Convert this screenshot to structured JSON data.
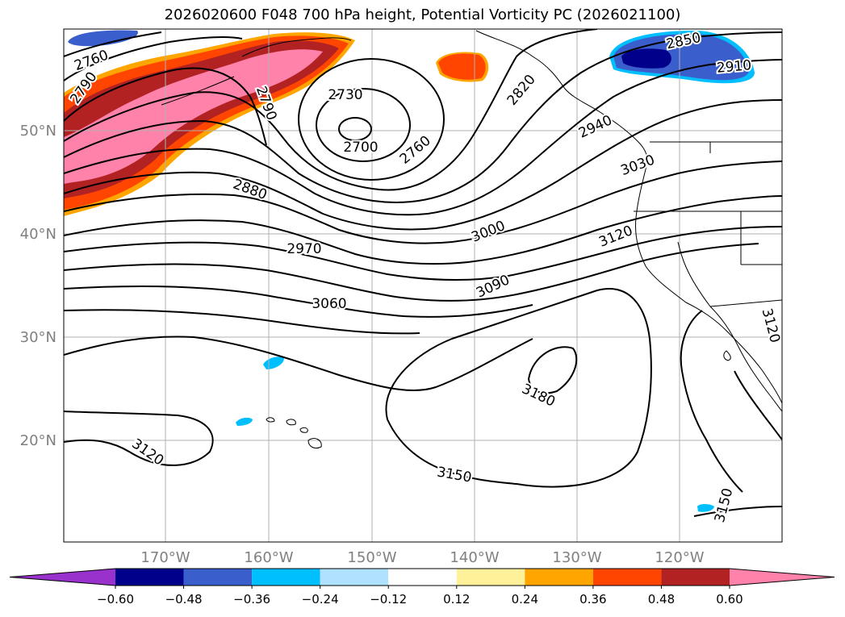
{
  "title": "2026020600 F048 700 hPa height, Potential Vorticity PC (2026021100)",
  "map": {
    "lat_labels": [
      {
        "value": 50,
        "text": "50°N"
      },
      {
        "value": 40,
        "text": "40°N"
      },
      {
        "value": 30,
        "text": "30°N"
      },
      {
        "value": 20,
        "text": "20°N"
      }
    ],
    "lon_labels": [
      {
        "value": -170,
        "text": "170°W"
      },
      {
        "value": -160,
        "text": "160°W"
      },
      {
        "value": -150,
        "text": "150°W"
      },
      {
        "value": -140,
        "text": "140°W"
      },
      {
        "value": -130,
        "text": "130°W"
      },
      {
        "value": -120,
        "text": "120°W"
      }
    ],
    "contour_labels": [
      "2760",
      "2790",
      "2790",
      "2730",
      "2700",
      "2760",
      "2820",
      "2850",
      "2910",
      "2940",
      "3030",
      "2880",
      "3000",
      "3120",
      "2970",
      "3090",
      "3060",
      "3180",
      "3120",
      "3150",
      "3150",
      "3120"
    ],
    "colors": {
      "contour": "#000000",
      "grid": "#b0b0b0",
      "coast": "#000000"
    }
  },
  "colorbar": {
    "ticks": [
      "−0.60",
      "−0.48",
      "−0.36",
      "−0.24",
      "−0.12",
      "0.12",
      "0.24",
      "0.36",
      "0.48",
      "0.60"
    ],
    "colors": [
      "#9932cc",
      "#00008b",
      "#3a5fcd",
      "#00bfff",
      "#b0e2ff",
      "#ffffff",
      "#fff09a",
      "#ffa500",
      "#ff4500",
      "#b22222",
      "#ff82ab"
    ]
  }
}
